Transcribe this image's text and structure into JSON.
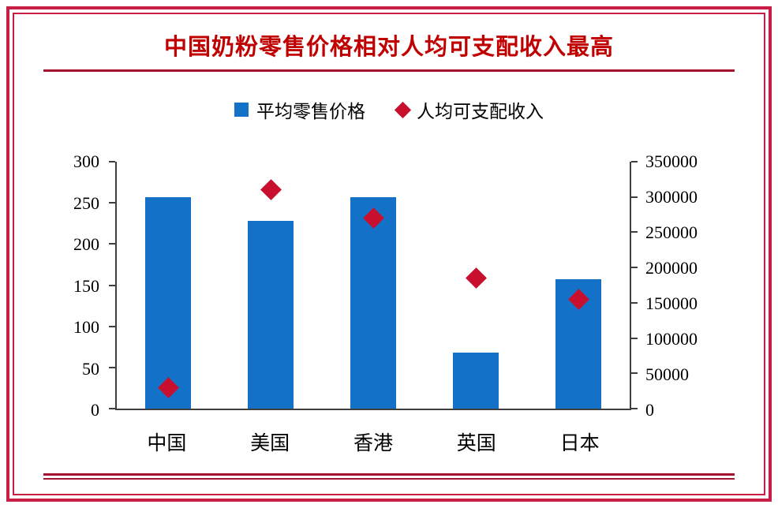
{
  "chart_data": {
    "type": "bar",
    "title": "中国奶粉零售价格相对人均可支配收入最高",
    "categories": [
      "中国",
      "美国",
      "香港",
      "英国",
      "日本"
    ],
    "series": [
      {
        "name": "平均零售价格",
        "type": "bar",
        "axis": "left",
        "color": "#1372c8",
        "values": [
          257,
          228,
          257,
          68,
          157
        ]
      },
      {
        "name": "人均可支配收入",
        "type": "scatter-diamond",
        "axis": "right",
        "color": "#c8102e",
        "values": [
          30000,
          310000,
          270000,
          185000,
          155000
        ]
      }
    ],
    "left_axis": {
      "min": 0,
      "max": 300,
      "step": 50,
      "ticks": [
        "0",
        "50",
        "100",
        "150",
        "200",
        "250",
        "300"
      ]
    },
    "right_axis": {
      "min": 0,
      "max": 350000,
      "step": 50000,
      "ticks": [
        "0",
        "50000",
        "100000",
        "150000",
        "200000",
        "250000",
        "300000",
        "350000"
      ]
    },
    "grid": false,
    "legend_position": "top"
  },
  "colors": {
    "frame": "#c81d45",
    "title": "#c00000",
    "rule": "#a3132f",
    "bar": "#1372c8",
    "diamond": "#c8102e",
    "axis": "#3f3f3f"
  }
}
